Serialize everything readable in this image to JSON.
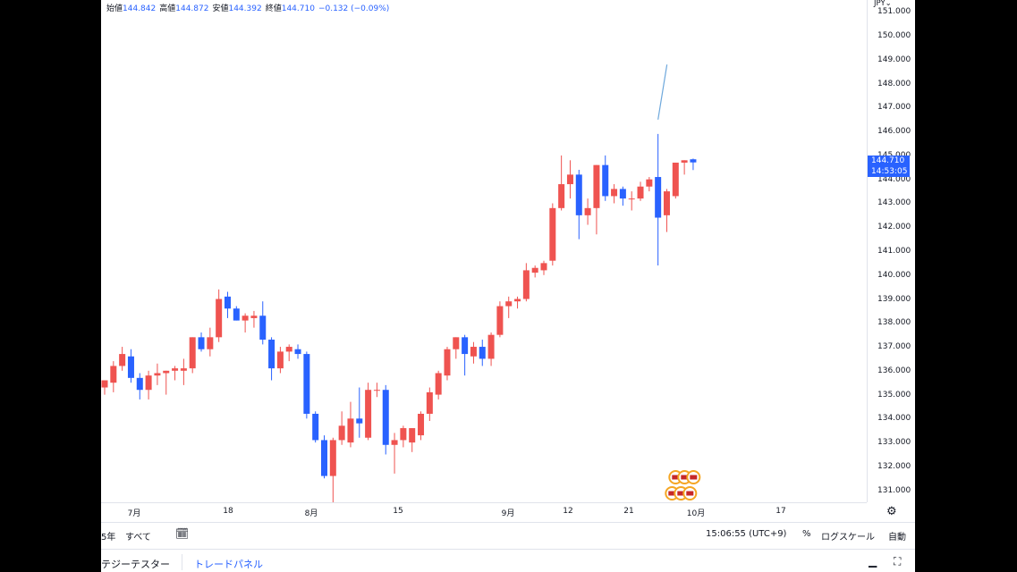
{
  "legend": {
    "open_label": "始値",
    "open": "144.842",
    "high_label": "高値",
    "high": "144.872",
    "low_label": "安値",
    "low": "144.392",
    "close_label": "終値",
    "close": "144.710",
    "change": "−0.132 (−0.09%)"
  },
  "currency": "JPY",
  "price_scale": {
    "current_price": "144.710",
    "countdown": "14:53:05"
  },
  "bottom_bar": {
    "range_partial": "5年",
    "all": "すべて",
    "time": "15:06:55 (UTC+9)",
    "percent": "%",
    "log_scale": "ログスケール",
    "auto": "自動"
  },
  "tabs": [
    "テジーテスター",
    "トレードパネル"
  ],
  "colors": {
    "up": "#ef5350",
    "down": "#2962ff",
    "line": "#6ea8dc"
  },
  "icons": {
    "settings": "gear-icon",
    "calendar": "calendar-icon",
    "events": "us-flag-event-icon",
    "minimize": "minimize-icon",
    "maximize": "maximize-icon"
  },
  "chart_data": {
    "type": "candlestick",
    "ylim": [
      130.5,
      151.5
    ],
    "y_ticks": [
      "131.000",
      "132.000",
      "133.000",
      "134.000",
      "135.000",
      "136.000",
      "137.000",
      "138.000",
      "139.000",
      "140.000",
      "141.000",
      "142.000",
      "143.000",
      "144.000",
      "145.000",
      "146.000",
      "147.000",
      "148.000",
      "149.000",
      "150.000",
      "151.000"
    ],
    "x_ticks": [
      "7月",
      "18",
      "8月",
      "15",
      "9月",
      "12",
      "21",
      "10月",
      "17"
    ],
    "candles": [
      {
        "o": 135.3,
        "h": 135.6,
        "l": 135.0,
        "c": 135.6
      },
      {
        "o": 135.5,
        "h": 136.4,
        "l": 135.1,
        "c": 136.2
      },
      {
        "o": 136.2,
        "h": 137.0,
        "l": 136.0,
        "c": 136.7
      },
      {
        "o": 136.6,
        "h": 136.9,
        "l": 135.5,
        "c": 135.7
      },
      {
        "o": 135.7,
        "h": 135.9,
        "l": 134.8,
        "c": 135.2
      },
      {
        "o": 135.2,
        "h": 136.0,
        "l": 134.8,
        "c": 135.8
      },
      {
        "o": 135.8,
        "h": 136.3,
        "l": 135.4,
        "c": 135.9
      },
      {
        "o": 135.9,
        "h": 136.0,
        "l": 135.0,
        "c": 136.0
      },
      {
        "o": 136.0,
        "h": 136.2,
        "l": 135.6,
        "c": 136.1
      },
      {
        "o": 136.0,
        "h": 136.5,
        "l": 135.4,
        "c": 136.1
      },
      {
        "o": 136.1,
        "h": 137.4,
        "l": 135.9,
        "c": 137.4
      },
      {
        "o": 137.4,
        "h": 137.6,
        "l": 136.8,
        "c": 136.9
      },
      {
        "o": 136.9,
        "h": 137.8,
        "l": 136.6,
        "c": 137.4
      },
      {
        "o": 137.4,
        "h": 139.4,
        "l": 137.2,
        "c": 139.0
      },
      {
        "o": 139.1,
        "h": 139.3,
        "l": 138.2,
        "c": 138.6
      },
      {
        "o": 138.6,
        "h": 138.7,
        "l": 138.1,
        "c": 138.1
      },
      {
        "o": 138.1,
        "h": 138.4,
        "l": 137.6,
        "c": 138.3
      },
      {
        "o": 138.2,
        "h": 138.5,
        "l": 137.8,
        "c": 138.3
      },
      {
        "o": 138.3,
        "h": 138.9,
        "l": 137.1,
        "c": 137.3
      },
      {
        "o": 137.3,
        "h": 137.4,
        "l": 135.6,
        "c": 136.1
      },
      {
        "o": 136.1,
        "h": 137.0,
        "l": 135.9,
        "c": 136.8
      },
      {
        "o": 136.8,
        "h": 137.1,
        "l": 136.4,
        "c": 137.0
      },
      {
        "o": 136.9,
        "h": 137.1,
        "l": 136.5,
        "c": 136.7
      },
      {
        "o": 136.7,
        "h": 136.8,
        "l": 134.0,
        "c": 134.2
      },
      {
        "o": 134.2,
        "h": 134.3,
        "l": 133.0,
        "c": 133.1
      },
      {
        "o": 133.1,
        "h": 133.3,
        "l": 131.5,
        "c": 131.6
      },
      {
        "o": 131.6,
        "h": 133.2,
        "l": 130.4,
        "c": 133.1
      },
      {
        "o": 133.1,
        "h": 134.3,
        "l": 132.9,
        "c": 133.7
      },
      {
        "o": 133.0,
        "h": 134.7,
        "l": 132.8,
        "c": 134.0
      },
      {
        "o": 134.0,
        "h": 135.3,
        "l": 133.2,
        "c": 133.8
      },
      {
        "o": 133.2,
        "h": 135.5,
        "l": 133.1,
        "c": 135.2
      },
      {
        "o": 135.2,
        "h": 135.5,
        "l": 134.9,
        "c": 135.2
      },
      {
        "o": 135.2,
        "h": 135.4,
        "l": 132.5,
        "c": 132.9
      },
      {
        "o": 132.9,
        "h": 133.4,
        "l": 131.7,
        "c": 133.1
      },
      {
        "o": 133.1,
        "h": 133.7,
        "l": 132.8,
        "c": 133.6
      },
      {
        "o": 133.0,
        "h": 133.6,
        "l": 132.6,
        "c": 133.6
      },
      {
        "o": 133.3,
        "h": 134.3,
        "l": 133.1,
        "c": 134.2
      },
      {
        "o": 134.2,
        "h": 135.3,
        "l": 133.9,
        "c": 135.1
      },
      {
        "o": 135.0,
        "h": 136.0,
        "l": 134.8,
        "c": 135.9
      },
      {
        "o": 135.8,
        "h": 137.0,
        "l": 135.6,
        "c": 136.9
      },
      {
        "o": 136.9,
        "h": 137.4,
        "l": 136.5,
        "c": 137.4
      },
      {
        "o": 137.4,
        "h": 137.5,
        "l": 135.8,
        "c": 136.7
      },
      {
        "o": 136.6,
        "h": 137.2,
        "l": 136.3,
        "c": 137.0
      },
      {
        "o": 137.0,
        "h": 137.3,
        "l": 136.2,
        "c": 136.5
      },
      {
        "o": 136.5,
        "h": 137.6,
        "l": 136.2,
        "c": 137.5
      },
      {
        "o": 137.5,
        "h": 138.9,
        "l": 137.4,
        "c": 138.7
      },
      {
        "o": 138.7,
        "h": 139.1,
        "l": 138.2,
        "c": 138.9
      },
      {
        "o": 138.9,
        "h": 139.1,
        "l": 138.6,
        "c": 139.0
      },
      {
        "o": 139.0,
        "h": 140.5,
        "l": 138.9,
        "c": 140.2
      },
      {
        "o": 140.1,
        "h": 140.4,
        "l": 139.9,
        "c": 140.3
      },
      {
        "o": 140.2,
        "h": 140.6,
        "l": 140.0,
        "c": 140.5
      },
      {
        "o": 140.6,
        "h": 143.0,
        "l": 140.4,
        "c": 142.8
      },
      {
        "o": 142.8,
        "h": 145.0,
        "l": 142.7,
        "c": 143.8
      },
      {
        "o": 143.8,
        "h": 144.8,
        "l": 143.2,
        "c": 144.2
      },
      {
        "o": 144.2,
        "h": 144.4,
        "l": 141.5,
        "c": 142.5
      },
      {
        "o": 142.5,
        "h": 143.2,
        "l": 142.1,
        "c": 142.8
      },
      {
        "o": 142.8,
        "h": 144.6,
        "l": 141.7,
        "c": 144.6
      },
      {
        "o": 144.6,
        "h": 145.0,
        "l": 143.1,
        "c": 143.3
      },
      {
        "o": 143.3,
        "h": 143.8,
        "l": 143.0,
        "c": 143.6
      },
      {
        "o": 143.6,
        "h": 143.7,
        "l": 142.9,
        "c": 143.2
      },
      {
        "o": 143.2,
        "h": 143.5,
        "l": 142.7,
        "c": 143.2
      },
      {
        "o": 143.2,
        "h": 143.9,
        "l": 143.1,
        "c": 143.7
      },
      {
        "o": 143.7,
        "h": 144.1,
        "l": 143.5,
        "c": 144.0
      },
      {
        "o": 144.1,
        "h": 145.9,
        "l": 140.4,
        "c": 142.4
      },
      {
        "o": 142.5,
        "h": 143.6,
        "l": 141.8,
        "c": 143.5
      },
      {
        "o": 143.3,
        "h": 144.7,
        "l": 143.2,
        "c": 144.7
      },
      {
        "o": 144.7,
        "h": 144.8,
        "l": 144.2,
        "c": 144.8
      },
      {
        "o": 144.84,
        "h": 144.87,
        "l": 144.39,
        "c": 144.71
      }
    ],
    "spike_line": [
      {
        "y": 146.5
      },
      {
        "y": 148.8
      }
    ]
  }
}
